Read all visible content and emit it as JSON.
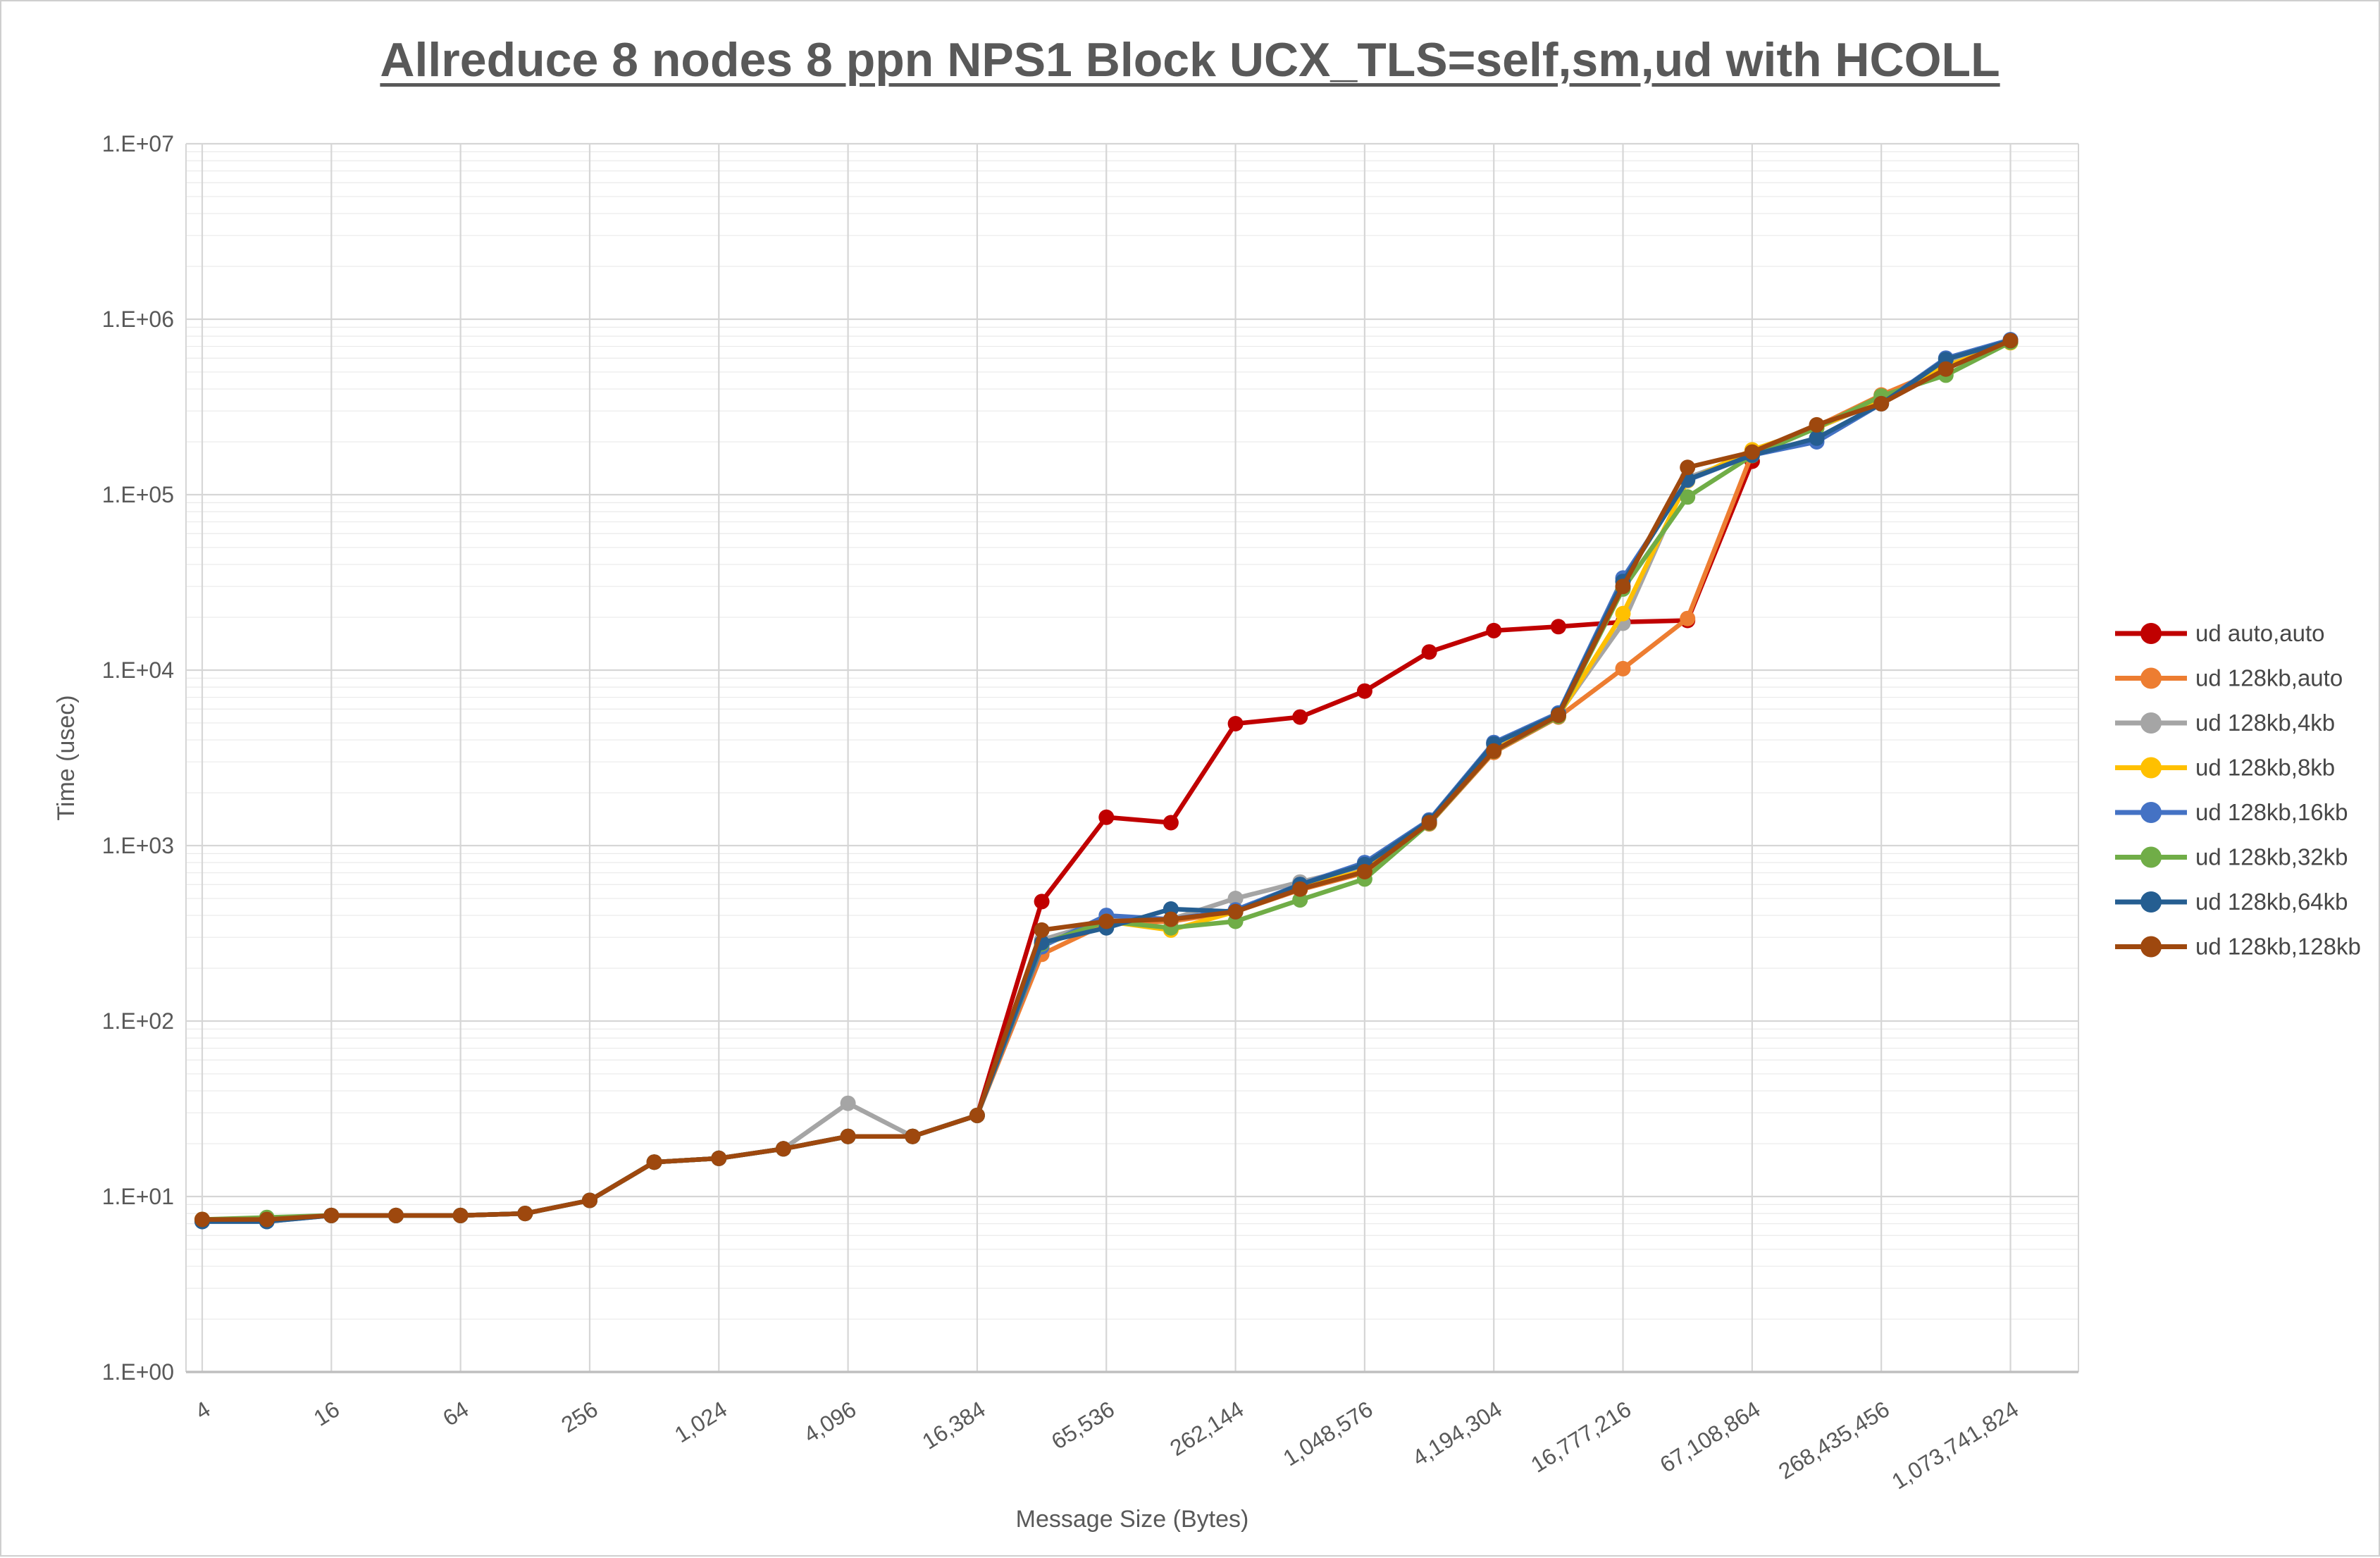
{
  "page": {
    "title": "Allreduce 8 nodes 8 ppn NPS1 Block UCX_TLS=self,sm,ud with HCOLL"
  },
  "chart_data": {
    "type": "line",
    "title": "Allreduce 8 nodes 8 ppn NPS1 Block UCX_TLS=self,sm,ud with HCOLL",
    "xlabel": "Message Size (Bytes)",
    "ylabel": "Time (usec)",
    "x_scale": "log2",
    "y_scale": "log10",
    "ylim": [
      1,
      10000000
    ],
    "grid": "horizontal major+minor, vertical major only",
    "legend_position": "right",
    "y_tick_labels": [
      "1.E+00",
      "1.E+01",
      "1.E+02",
      "1.E+03",
      "1.E+04",
      "1.E+05",
      "1.E+06",
      "1.E+07"
    ],
    "x_tick_labels": [
      "4",
      "16",
      "64",
      "256",
      "1,024",
      "4,096",
      "16,384",
      "65,536",
      "262,144",
      "1,048,576",
      "4,194,304",
      "16,777,216",
      "67,108,864",
      "268,435,456",
      "1,073,741,824"
    ],
    "x": [
      4,
      8,
      16,
      32,
      64,
      128,
      256,
      512,
      1024,
      2048,
      4096,
      8192,
      16384,
      32768,
      65536,
      131072,
      262144,
      524288,
      1048576,
      2097152,
      4194304,
      8388608,
      16777216,
      33554432,
      67108864,
      134217728,
      268435456,
      536870912,
      1073741824
    ],
    "axis_color": "#bfbfbf",
    "gridline_major_color": "#d6d6d6",
    "gridline_minor_color": "#eaeaea",
    "tick_text_color": "#595959",
    "legend_text_color": "#474747",
    "series": [
      {
        "name": "ud auto,auto",
        "color": "#C00000",
        "values": [
          7.4,
          7.4,
          7.8,
          7.8,
          7.8,
          8.0,
          9.5,
          15.7,
          16.5,
          18.7,
          22,
          22,
          29,
          480,
          1450,
          1350,
          4950,
          5400,
          7600,
          12700,
          16800,
          17700,
          18800,
          19200,
          155000,
          null,
          null,
          null,
          null
        ]
      },
      {
        "name": "ud 128kb,auto",
        "color": "#ED7D31",
        "values": [
          7.4,
          7.4,
          7.8,
          7.8,
          7.8,
          8.0,
          9.5,
          15.7,
          16.5,
          18.7,
          22,
          22,
          29,
          240,
          360,
          370,
          420,
          560,
          700,
          1330,
          3400,
          5400,
          10200,
          19700,
          172000,
          245000,
          370000,
          530000,
          750000
        ]
      },
      {
        "name": "ud 128kb,4kb",
        "color": "#A5A5A5",
        "values": [
          7.4,
          7.4,
          7.8,
          7.8,
          7.8,
          8.0,
          9.5,
          15.7,
          16.5,
          18.7,
          34,
          22,
          29,
          290,
          375,
          380,
          500,
          620,
          760,
          1380,
          3550,
          5600,
          18500,
          125000,
          170000,
          240000,
          340000,
          560000,
          750000
        ]
      },
      {
        "name": "ud 128kb,8kb",
        "color": "#FFC000",
        "values": [
          7.4,
          7.4,
          7.8,
          7.8,
          7.8,
          8.0,
          9.5,
          15.7,
          16.5,
          18.7,
          22,
          22,
          29,
          270,
          370,
          330,
          420,
          580,
          720,
          1350,
          3500,
          5500,
          21000,
          120000,
          180000,
          240000,
          345000,
          540000,
          735000
        ]
      },
      {
        "name": "ud 128kb,16kb",
        "color": "#4472C4",
        "values": [
          7.2,
          7.2,
          7.8,
          7.8,
          7.8,
          8.0,
          9.5,
          15.7,
          16.5,
          18.7,
          22,
          22,
          29,
          265,
          400,
          380,
          430,
          600,
          800,
          1400,
          3870,
          5700,
          33500,
          121000,
          168000,
          200000,
          330000,
          600000,
          765000
        ]
      },
      {
        "name": "ud 128kb,32kb",
        "color": "#70AD47",
        "values": [
          7.4,
          7.6,
          7.8,
          7.8,
          7.8,
          8.0,
          9.5,
          15.7,
          16.5,
          18.7,
          22,
          22,
          29,
          275,
          370,
          340,
          370,
          490,
          645,
          1340,
          3450,
          5450,
          29000,
          97000,
          167000,
          240000,
          365000,
          480000,
          740000
        ]
      },
      {
        "name": "ud 128kb,64kb",
        "color": "#255E91",
        "values": [
          7.2,
          7.2,
          7.8,
          7.8,
          7.8,
          8.0,
          9.5,
          15.7,
          16.5,
          18.7,
          22,
          22,
          29,
          280,
          340,
          435,
          420,
          600,
          780,
          1380,
          3800,
          5600,
          32000,
          122000,
          168000,
          210000,
          330000,
          590000,
          755000
        ]
      },
      {
        "name": "ud 128kb,128kb",
        "color": "#9E480E",
        "values": [
          7.4,
          7.4,
          7.8,
          7.8,
          7.8,
          8.0,
          9.5,
          15.7,
          16.5,
          18.7,
          22,
          22,
          29,
          330,
          370,
          380,
          420,
          565,
          710,
          1350,
          3460,
          5530,
          30000,
          143000,
          175000,
          250000,
          330000,
          520000,
          755000
        ]
      }
    ]
  }
}
